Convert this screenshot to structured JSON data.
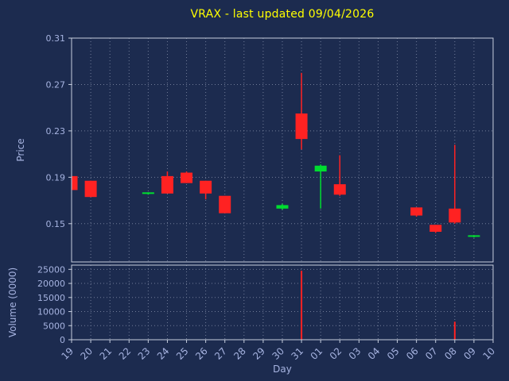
{
  "title": "VRAX - last updated 09/04/2026",
  "axes": {
    "price_label": "Price",
    "volume_label": "Volume (0000)",
    "x_label": "Day"
  },
  "colors": {
    "background": "#1c2b4f",
    "title": "#ffff00",
    "axis_text": "#a6b3e0",
    "grid": "#c3cbe0",
    "border": "#c6cede",
    "up": "#00dd30",
    "down": "#ff2222"
  },
  "chart_data": {
    "type": "candlestick",
    "has_volume_subplot": true,
    "grid": "dotted",
    "categories": [
      "19",
      "20",
      "21",
      "22",
      "23",
      "24",
      "25",
      "26",
      "27",
      "28",
      "29",
      "30",
      "31",
      "01",
      "02",
      "03",
      "04",
      "05",
      "06",
      "07",
      "08",
      "09",
      "10"
    ],
    "price_axis": {
      "min": 0.117,
      "max": 0.31,
      "ticks": [
        {
          "value": 0.31,
          "label": "0.31"
        },
        {
          "value": 0.27,
          "label": "0.27"
        },
        {
          "value": 0.23,
          "label": "0.23"
        },
        {
          "value": 0.19,
          "label": "0.19"
        },
        {
          "value": 0.15,
          "label": "0.15"
        }
      ]
    },
    "volume_axis": {
      "min": 0,
      "max": 26500,
      "ticks": [
        {
          "value": 25000,
          "label": "25000"
        },
        {
          "value": 20000,
          "label": "20000"
        },
        {
          "value": 15000,
          "label": "15000"
        },
        {
          "value": 10000,
          "label": "10000"
        },
        {
          "value": 5000,
          "label": "5000"
        },
        {
          "value": 0,
          "label": "0"
        }
      ]
    },
    "candles": [
      {
        "day": "19",
        "open": 0.191,
        "high": 0.191,
        "low": 0.179,
        "close": 0.179
      },
      {
        "day": "20",
        "open": 0.187,
        "high": 0.187,
        "low": 0.173,
        "close": 0.173
      },
      {
        "day": "23",
        "open": 0.176,
        "high": 0.177,
        "low": 0.175,
        "close": 0.177
      },
      {
        "day": "24",
        "open": 0.191,
        "high": 0.195,
        "low": 0.176,
        "close": 0.176
      },
      {
        "day": "25",
        "open": 0.194,
        "high": 0.195,
        "low": 0.185,
        "close": 0.185
      },
      {
        "day": "26",
        "open": 0.187,
        "high": 0.187,
        "low": 0.171,
        "close": 0.176
      },
      {
        "day": "27",
        "open": 0.174,
        "high": 0.174,
        "low": 0.159,
        "close": 0.159
      },
      {
        "day": "30",
        "open": 0.163,
        "high": 0.167,
        "low": 0.162,
        "close": 0.166
      },
      {
        "day": "31",
        "open": 0.245,
        "high": 0.28,
        "low": 0.214,
        "close": 0.223
      },
      {
        "day": "01",
        "open": 0.195,
        "high": 0.201,
        "low": 0.163,
        "close": 0.2
      },
      {
        "day": "02",
        "open": 0.184,
        "high": 0.209,
        "low": 0.174,
        "close": 0.175
      },
      {
        "day": "06",
        "open": 0.164,
        "high": 0.164,
        "low": 0.156,
        "close": 0.157
      },
      {
        "day": "07",
        "open": 0.149,
        "high": 0.149,
        "low": 0.142,
        "close": 0.143
      },
      {
        "day": "08",
        "open": 0.163,
        "high": 0.218,
        "low": 0.15,
        "close": 0.151
      },
      {
        "day": "09",
        "open": 0.139,
        "high": 0.14,
        "low": 0.138,
        "close": 0.14
      }
    ],
    "volumes": [
      {
        "day": "31",
        "value": 24500
      },
      {
        "day": "08",
        "value": 6400
      }
    ]
  }
}
